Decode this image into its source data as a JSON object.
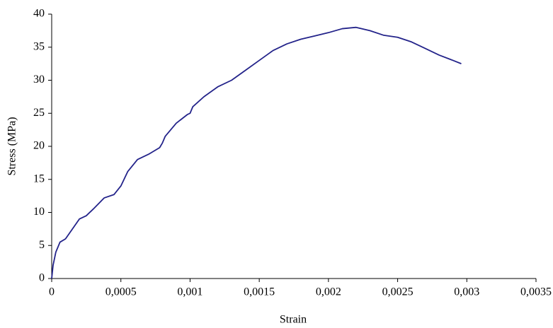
{
  "chart_data": {
    "type": "line",
    "x_label": "Strain",
    "y_label": "Stress (MPa)",
    "x": [
      0,
      1e-05,
      3e-05,
      6e-05,
      0.0001,
      0.00015,
      0.0002,
      0.00025,
      0.0003,
      0.00038,
      0.00045,
      0.0005,
      0.00055,
      0.00062,
      0.0007,
      0.00078,
      0.0008,
      0.00082,
      0.0009,
      0.00098,
      0.001,
      0.00102,
      0.0011,
      0.0012,
      0.0013,
      0.0014,
      0.0015,
      0.0016,
      0.0017,
      0.0018,
      0.0019,
      0.002,
      0.0021,
      0.0022,
      0.0023,
      0.0024,
      0.0025,
      0.0026,
      0.0027,
      0.0028,
      0.0029,
      0.00296
    ],
    "series": [
      {
        "color": "#23238a",
        "values": [
          0,
          2,
          4,
          5.5,
          6,
          7.5,
          9,
          9.5,
          10.5,
          12.2,
          12.7,
          14,
          16.2,
          18,
          18.8,
          19.8,
          20.5,
          21.5,
          23.5,
          24.8,
          25,
          26,
          27.5,
          29,
          30,
          31.5,
          33,
          34.5,
          35.5,
          36.2,
          36.7,
          37.2,
          37.8,
          38,
          37.5,
          36.8,
          36.5,
          35.8,
          34.8,
          33.8,
          33,
          32.5
        ]
      }
    ],
    "xlim": [
      0,
      0.0035
    ],
    "xticks": [
      0,
      {
        "value": 0.0005,
        "label": "0,0005"
      },
      {
        "value": 0.001,
        "label": "0,001"
      },
      {
        "value": 0.0015,
        "label": "0,0015"
      },
      {
        "value": 0.002,
        "label": "0,002"
      },
      {
        "value": 0.0025,
        "label": "0,0025"
      },
      {
        "value": 0.003,
        "label": "0,003"
      },
      {
        "value": 0.0035,
        "label": "0,0035"
      }
    ],
    "ylim": [
      0,
      40
    ],
    "yticks": [
      0,
      5,
      10,
      15,
      20,
      25,
      30,
      35,
      40
    ],
    "grid": false
  }
}
